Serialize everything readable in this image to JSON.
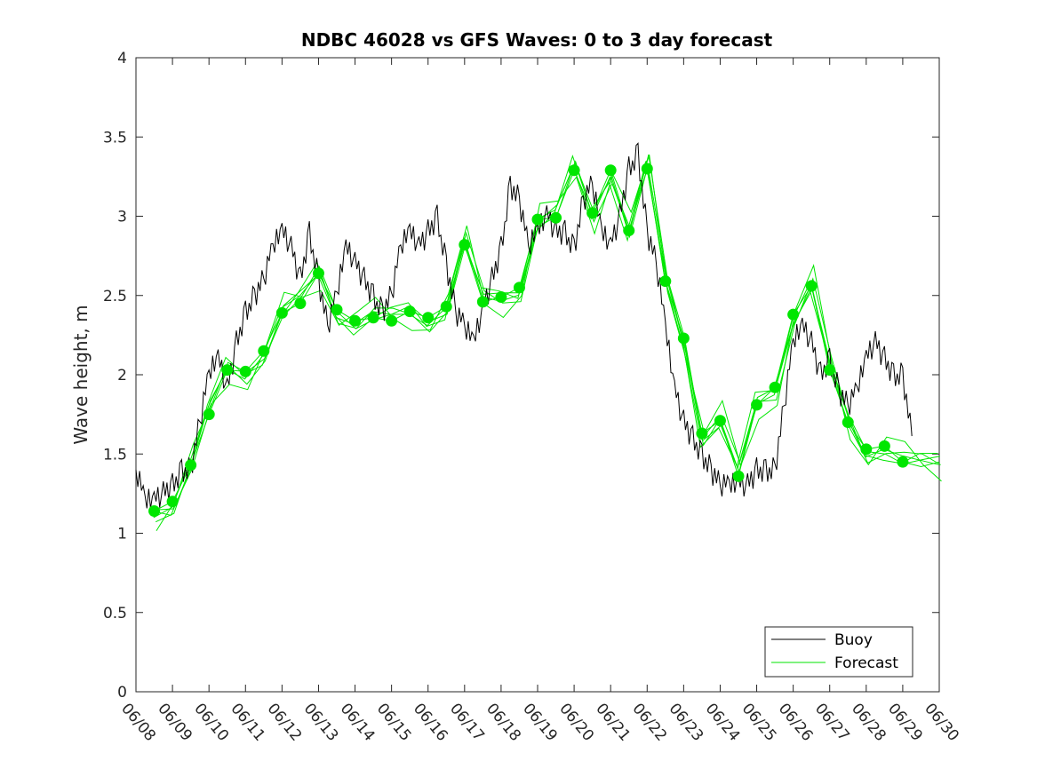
{
  "chart_data": {
    "type": "line",
    "title": "NDBC 46028 vs GFS Waves: 0 to 3 day forecast",
    "xlabel": "",
    "ylabel": "Wave height, m",
    "ylim": [
      0,
      4
    ],
    "xlim": [
      0,
      22
    ],
    "x_tick_labels": [
      "06/08",
      "06/09",
      "06/10",
      "06/11",
      "06/12",
      "06/13",
      "06/14",
      "06/15",
      "06/16",
      "06/17",
      "06/18",
      "06/19",
      "06/20",
      "06/21",
      "06/22",
      "06/23",
      "06/24",
      "06/25",
      "06/26",
      "06/27",
      "06/28",
      "06/29",
      "06/30"
    ],
    "y_ticks": [
      0,
      0.5,
      1,
      1.5,
      2,
      2.5,
      3,
      3.5,
      4
    ],
    "y_tick_labels": [
      "0",
      "0.5",
      "1",
      "1.5",
      "2",
      "2.5",
      "3",
      "3.5",
      "4"
    ],
    "grid": false,
    "legend_position": "bottom-right",
    "colors": {
      "buoy": "#000000",
      "forecast": "#00e600",
      "axes": "#262626"
    },
    "series": [
      {
        "name": "Buoy",
        "style": "line",
        "x": [
          0.0,
          0.25,
          0.5,
          0.75,
          1.0,
          1.25,
          1.5,
          1.75,
          2.0,
          2.25,
          2.5,
          2.75,
          3.0,
          3.25,
          3.5,
          3.75,
          4.0,
          4.25,
          4.5,
          4.75,
          5.0,
          5.25,
          5.5,
          5.75,
          6.0,
          6.25,
          6.5,
          6.75,
          7.0,
          7.25,
          7.5,
          7.75,
          8.0,
          8.25,
          8.5,
          8.75,
          9.0,
          9.25,
          9.5,
          9.75,
          10.0,
          10.25,
          10.5,
          10.75,
          11.0,
          11.25,
          11.5,
          11.75,
          12.0,
          12.25,
          12.5,
          12.75,
          13.0,
          13.25,
          13.5,
          13.75,
          14.0,
          14.25,
          14.5,
          14.75,
          15.0,
          15.25,
          15.5,
          15.75,
          16.0,
          16.25,
          16.5,
          16.75,
          17.0,
          17.25,
          17.5,
          17.75,
          18.0,
          18.25,
          18.5,
          18.75,
          19.0,
          19.25,
          19.5,
          19.75,
          20.0,
          20.25,
          20.5,
          20.75,
          21.0,
          21.25
        ],
        "values": [
          1.4,
          1.2,
          1.2,
          1.25,
          1.3,
          1.4,
          1.4,
          1.7,
          2.0,
          2.1,
          1.9,
          2.2,
          2.4,
          2.5,
          2.6,
          2.8,
          2.9,
          2.8,
          2.6,
          2.9,
          2.6,
          2.3,
          2.5,
          2.8,
          2.7,
          2.6,
          2.5,
          2.4,
          2.5,
          2.8,
          2.9,
          2.8,
          2.9,
          3.0,
          2.7,
          2.4,
          2.3,
          2.2,
          2.4,
          2.6,
          2.8,
          3.2,
          3.1,
          2.8,
          2.9,
          3.0,
          2.9,
          2.9,
          2.8,
          3.1,
          3.2,
          2.9,
          2.8,
          3.0,
          3.3,
          3.4,
          2.9,
          2.7,
          2.3,
          1.9,
          1.7,
          1.6,
          1.5,
          1.4,
          1.3,
          1.3,
          1.3,
          1.3,
          1.4,
          1.4,
          1.4,
          1.8,
          2.2,
          2.3,
          2.2,
          2.0,
          2.1,
          1.9,
          1.8,
          1.9,
          2.1,
          2.2,
          2.1,
          2.0,
          2.0,
          1.6
        ]
      },
      {
        "name": "Forecast",
        "style": "line",
        "x": [
          0.5,
          1.0,
          1.5,
          2.0,
          2.5,
          3.0,
          3.5,
          4.0,
          4.5,
          5.0,
          5.5,
          6.0,
          6.5,
          7.0,
          7.5,
          8.0,
          8.5,
          9.0,
          9.5,
          10.0,
          10.5,
          11.0,
          11.5,
          12.0,
          12.5,
          13.0,
          13.5,
          14.0,
          14.5,
          15.0,
          15.5,
          16.0,
          16.5,
          17.0,
          17.5,
          18.0,
          18.5,
          19.0,
          19.5,
          20.0,
          20.5,
          21.0,
          21.5,
          22.0
        ],
        "values": [
          1.14,
          1.2,
          1.43,
          1.75,
          2.03,
          2.02,
          2.15,
          2.39,
          2.45,
          2.64,
          2.41,
          2.34,
          2.36,
          2.34,
          2.4,
          2.36,
          2.43,
          2.82,
          2.46,
          2.49,
          2.55,
          2.98,
          2.99,
          3.29,
          3.02,
          3.29,
          2.91,
          3.3,
          2.59,
          2.23,
          1.63,
          1.71,
          1.36,
          1.81,
          1.92,
          2.38,
          2.56,
          2.03,
          1.7,
          1.53,
          1.55,
          1.45,
          1.42,
          1.45
        ]
      },
      {
        "name": "",
        "style": "markers",
        "x": [
          0.5,
          1.0,
          1.5,
          2.0,
          2.5,
          3.0,
          3.5,
          4.0,
          4.5,
          5.0,
          5.5,
          6.0,
          6.5,
          7.0,
          7.5,
          8.0,
          8.5,
          9.0,
          9.5,
          10.0,
          10.5,
          11.0,
          11.5,
          12.0,
          12.5,
          13.0,
          13.5,
          14.0,
          14.5,
          15.0,
          15.5,
          16.0,
          16.5,
          17.0,
          17.5,
          18.0,
          18.5,
          19.0,
          19.5,
          20.0,
          20.5,
          21.0
        ],
        "values": [
          1.14,
          1.2,
          1.43,
          1.75,
          2.03,
          2.02,
          2.15,
          2.39,
          2.45,
          2.64,
          2.41,
          2.34,
          2.36,
          2.34,
          2.4,
          2.36,
          2.43,
          2.82,
          2.46,
          2.49,
          2.55,
          2.98,
          2.99,
          3.29,
          3.02,
          3.29,
          2.91,
          3.3,
          2.59,
          2.23,
          1.63,
          1.71,
          1.36,
          1.81,
          1.92,
          2.38,
          2.56,
          2.03,
          1.7,
          1.53,
          1.55,
          1.45
        ]
      }
    ],
    "legend": [
      {
        "label": "Buoy",
        "color": "#000000"
      },
      {
        "label": "Forecast",
        "color": "#00e600"
      }
    ]
  }
}
